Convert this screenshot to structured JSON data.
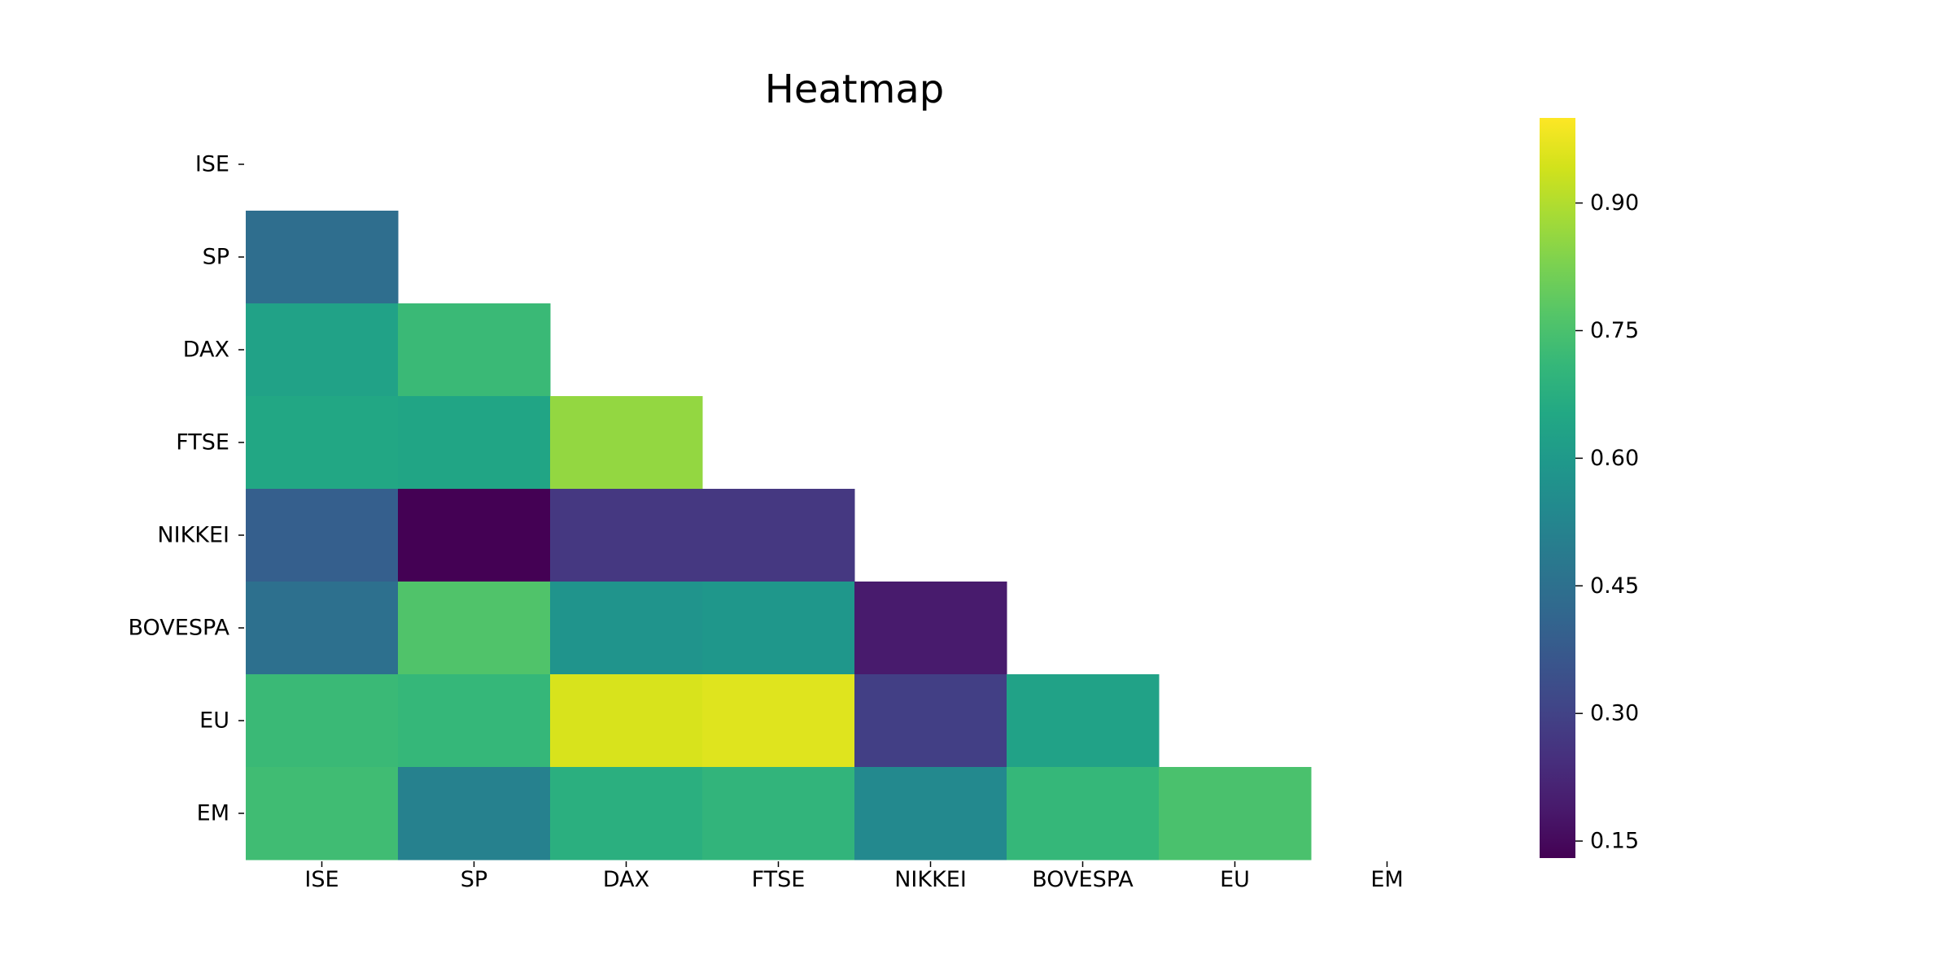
{
  "chart_data": {
    "type": "heatmap",
    "title": "Heatmap",
    "xlabel": "",
    "ylabel": "",
    "rows": [
      "ISE",
      "SP",
      "DAX",
      "FTSE",
      "NIKKEI",
      "BOVESPA",
      "EU",
      "EM"
    ],
    "cols": [
      "ISE",
      "SP",
      "DAX",
      "FTSE",
      "NIKKEI",
      "BOVESPA",
      "EU",
      "EM"
    ],
    "mask": "upper-triangle-including-diagonal",
    "values": [
      [
        null,
        null,
        null,
        null,
        null,
        null,
        null,
        null
      ],
      [
        0.44,
        null,
        null,
        null,
        null,
        null,
        null,
        null
      ],
      [
        0.63,
        0.72,
        null,
        null,
        null,
        null,
        null,
        null
      ],
      [
        0.65,
        0.64,
        0.86,
        null,
        null,
        null,
        null,
        null
      ],
      [
        0.39,
        0.13,
        0.27,
        0.27,
        null,
        null,
        null,
        null
      ],
      [
        0.45,
        0.76,
        0.58,
        0.59,
        0.19,
        null,
        null,
        null
      ],
      [
        0.72,
        0.71,
        0.95,
        0.96,
        0.29,
        0.63,
        null,
        null
      ],
      [
        0.73,
        0.51,
        0.68,
        0.7,
        0.54,
        0.71,
        0.75,
        null
      ]
    ],
    "colormap": "viridis",
    "colorbar": {
      "vmin": 0.13,
      "vmax": 1.0,
      "ticks": [
        0.15,
        0.3,
        0.45,
        0.6,
        0.75,
        0.9
      ],
      "tick_labels": [
        "0.15",
        "0.30",
        "0.45",
        "0.60",
        "0.75",
        "0.90"
      ],
      "position": "right"
    },
    "grid": false,
    "frame": false
  }
}
